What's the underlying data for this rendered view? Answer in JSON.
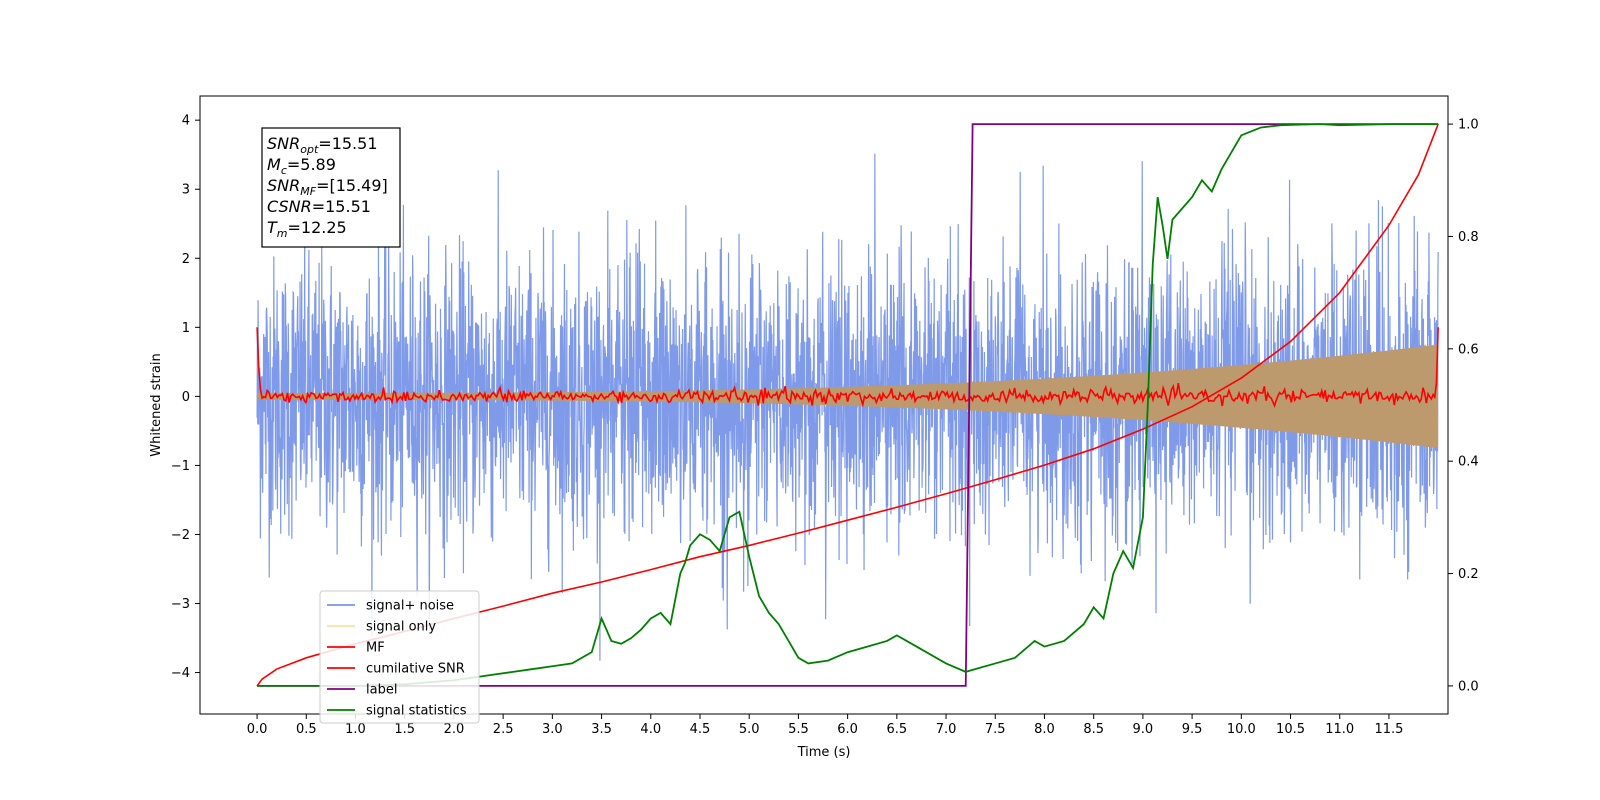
{
  "chart_data": {
    "type": "line",
    "title": "",
    "xlabel": "Time (s)",
    "ylabel_left": "Whitened strain",
    "ylabel_right": "",
    "xlim": [
      -0.58,
      12.1
    ],
    "ylim_left": [
      -4.6,
      4.35
    ],
    "ylim_right": [
      -0.05,
      1.05
    ],
    "x_ticks": [
      0.0,
      0.5,
      1.0,
      1.5,
      2.0,
      2.5,
      3.0,
      3.5,
      4.0,
      4.5,
      5.0,
      5.5,
      6.0,
      6.5,
      7.0,
      7.5,
      8.0,
      8.5,
      9.0,
      9.5,
      10.0,
      10.5,
      11.0,
      11.5
    ],
    "x_tick_labels": [
      "0.0",
      "0.5",
      "1.0",
      "1.5",
      "2.0",
      "2.5",
      "3.0",
      "3.5",
      "4.0",
      "4.5",
      "5.0",
      "5.5",
      "6.0",
      "6.5",
      "7.0",
      "7.5",
      "8.0",
      "8.5",
      "9.0",
      "9.5",
      "10.0",
      "10.5",
      "11.0",
      "11.5"
    ],
    "y_ticks_left": [
      4,
      3,
      2,
      1,
      0,
      -1,
      -2,
      -3,
      -4
    ],
    "y_tick_labels_left": [
      "4",
      "3",
      "2",
      "1",
      "0",
      "−1",
      "−2",
      "−3",
      "−4"
    ],
    "y_ticks_right": [
      1.0,
      0.8,
      0.6,
      0.4,
      0.2,
      0.0
    ],
    "y_tick_labels_right": [
      "1.0",
      "0.8",
      "0.6",
      "0.4",
      "0.2",
      "0.0"
    ],
    "grid": false,
    "legend_placement": "lower-left",
    "annotation": {
      "lines": [
        {
          "main": "SNR",
          "sub": "opt",
          "rest": "=15.51"
        },
        {
          "main": "M",
          "sub": "c",
          "rest": "=5.89"
        },
        {
          "main": "SNR",
          "sub": "MF",
          "rest": "=[15.49]"
        },
        {
          "main": "CSNR",
          "sub": "",
          "rest": "=15.51"
        },
        {
          "main": "T",
          "sub": "m",
          "rest": "=12.25"
        }
      ]
    },
    "series": [
      {
        "name": "signal+ noise",
        "color": "#7895e8",
        "axis": "left",
        "kind": "noise",
        "x_range": [
          0.0,
          12.0
        ],
        "abs_peak": 3.95,
        "typical_envelope": 2.3
      },
      {
        "name": "signal only",
        "color": "#ffc870",
        "axis": "left",
        "kind": "chirp",
        "x_range": [
          0.0,
          12.0
        ],
        "amplitude_start": 0.05,
        "amplitude_end": 0.75,
        "visible_fill": "#bc9a6e"
      },
      {
        "name": "MF",
        "color": "#ff0000",
        "axis": "left",
        "kind": "matched-filter",
        "x_range": [
          0.0,
          12.0
        ],
        "start_value": 1.0,
        "end_value": 1.0,
        "noise_level": 0.05
      },
      {
        "name": "cumilative SNR",
        "color": "#ff0000",
        "axis": "right",
        "x": [
          0.0,
          0.05,
          0.2,
          0.5,
          1.0,
          1.5,
          2.0,
          2.5,
          3.0,
          3.5,
          4.0,
          4.5,
          5.0,
          5.5,
          6.0,
          6.5,
          7.0,
          7.5,
          8.0,
          8.5,
          9.0,
          9.5,
          10.0,
          10.5,
          11.0,
          11.5,
          11.8,
          12.0
        ],
        "y": [
          0.0,
          0.012,
          0.03,
          0.05,
          0.075,
          0.097,
          0.12,
          0.142,
          0.165,
          0.185,
          0.207,
          0.23,
          0.25,
          0.272,
          0.295,
          0.318,
          0.342,
          0.367,
          0.393,
          0.422,
          0.457,
          0.497,
          0.548,
          0.613,
          0.7,
          0.82,
          0.91,
          1.0
        ]
      },
      {
        "name": "label",
        "color": "#800080",
        "axis": "right",
        "x": [
          0.0,
          7.2,
          7.27,
          12.0
        ],
        "y": [
          0.0,
          0.0,
          1.0,
          1.0
        ]
      },
      {
        "name": "signal statistics",
        "color": "#008000",
        "axis": "right",
        "x": [
          0.0,
          1.0,
          1.5,
          2.0,
          2.2,
          2.4,
          2.6,
          2.8,
          3.0,
          3.2,
          3.4,
          3.5,
          3.6,
          3.7,
          3.8,
          3.9,
          4.0,
          4.1,
          4.2,
          4.3,
          4.35,
          4.4,
          4.5,
          4.6,
          4.7,
          4.8,
          4.9,
          5.0,
          5.1,
          5.2,
          5.3,
          5.4,
          5.5,
          5.6,
          5.8,
          6.0,
          6.2,
          6.4,
          6.5,
          6.6,
          6.8,
          7.0,
          7.2,
          7.3,
          7.5,
          7.7,
          7.9,
          8.0,
          8.2,
          8.4,
          8.5,
          8.6,
          8.7,
          8.8,
          8.9,
          9.0,
          9.05,
          9.1,
          9.15,
          9.2,
          9.25,
          9.3,
          9.4,
          9.5,
          9.6,
          9.7,
          9.8,
          9.9,
          10.0,
          10.2,
          10.4,
          10.6,
          10.8,
          11.0,
          11.5,
          12.0
        ],
        "y": [
          0.0,
          0.0,
          0.003,
          0.01,
          0.015,
          0.02,
          0.025,
          0.03,
          0.035,
          0.04,
          0.06,
          0.12,
          0.08,
          0.075,
          0.085,
          0.1,
          0.12,
          0.13,
          0.11,
          0.2,
          0.22,
          0.25,
          0.27,
          0.26,
          0.24,
          0.3,
          0.31,
          0.23,
          0.16,
          0.13,
          0.11,
          0.08,
          0.05,
          0.04,
          0.045,
          0.06,
          0.07,
          0.08,
          0.09,
          0.08,
          0.06,
          0.04,
          0.025,
          0.03,
          0.04,
          0.05,
          0.08,
          0.07,
          0.08,
          0.11,
          0.14,
          0.12,
          0.2,
          0.24,
          0.21,
          0.3,
          0.5,
          0.75,
          0.87,
          0.82,
          0.76,
          0.83,
          0.85,
          0.87,
          0.9,
          0.88,
          0.92,
          0.95,
          0.98,
          0.994,
          0.998,
          0.999,
          1.0,
          0.998,
          1.0,
          1.0
        ]
      }
    ]
  }
}
